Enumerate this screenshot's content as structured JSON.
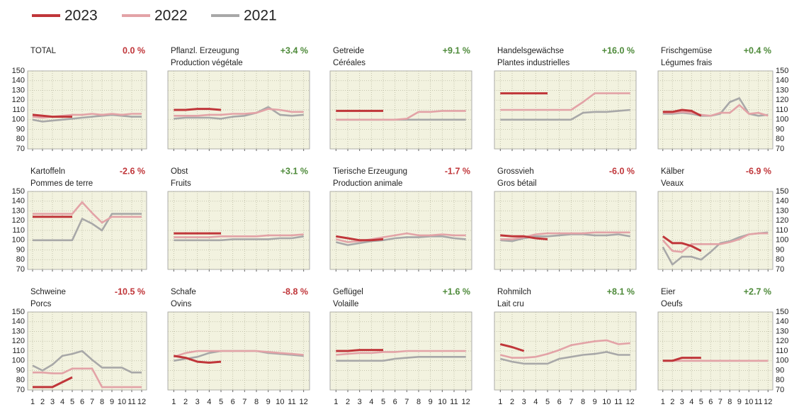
{
  "chart_data": {
    "type": "line",
    "legend": [
      {
        "name": "2023",
        "color": "#c0363a"
      },
      {
        "name": "2022",
        "color": "#e3a3a7"
      },
      {
        "name": "2021",
        "color": "#a8a8a8"
      }
    ],
    "categories": [
      1,
      2,
      3,
      4,
      5,
      6,
      7,
      8,
      9,
      10,
      11,
      12
    ],
    "ylim": [
      70,
      150
    ],
    "yticks": [
      70,
      80,
      90,
      100,
      110,
      120,
      130,
      140,
      150
    ],
    "grid": true,
    "panels": [
      {
        "title": "TOTAL",
        "change": "0.0 %",
        "change_color": "#c0363a",
        "series": [
          {
            "values": [
              105,
              104,
              103,
              103,
              103,
              null,
              null,
              null,
              null,
              null,
              null,
              null
            ]
          },
          {
            "values": [
              103,
              102,
              103,
              104,
              105,
              105,
              106,
              105,
              106,
              105,
              106,
              106
            ]
          },
          {
            "values": [
              100,
              98,
              99,
              100,
              101,
              102,
              103,
              104,
              105,
              104,
              103,
              103
            ]
          }
        ]
      },
      {
        "title": "Pflanzl. Erzeugung",
        "subtitle": "Production végétale",
        "change": "+3.4 %",
        "change_color": "#4e8a3a",
        "series": [
          {
            "values": [
              110,
              110,
              111,
              111,
              110,
              null,
              null,
              null,
              null,
              null,
              null,
              null
            ]
          },
          {
            "values": [
              104,
              104,
              104,
              105,
              105,
              106,
              106,
              107,
              111,
              110,
              108,
              108
            ]
          },
          {
            "values": [
              101,
              102,
              102,
              102,
              101,
              103,
              104,
              107,
              113,
              105,
              104,
              105
            ]
          }
        ]
      },
      {
        "title": "Getreide",
        "subtitle": "Céréales",
        "change": "+9.1 %",
        "change_color": "#4e8a3a",
        "series": [
          {
            "values": [
              109,
              109,
              109,
              109,
              109,
              null,
              null,
              null,
              null,
              null,
              null,
              null
            ]
          },
          {
            "values": [
              100,
              100,
              100,
              100,
              100,
              100,
              101,
              108,
              108,
              109,
              109,
              109
            ]
          },
          {
            "values": [
              100,
              100,
              100,
              100,
              100,
              100,
              100,
              100,
              100,
              100,
              100,
              100
            ]
          }
        ]
      },
      {
        "title": "Handelsgewächse",
        "subtitle": "Plantes industrielles",
        "change": "+16.0 %",
        "change_color": "#4e8a3a",
        "series": [
          {
            "values": [
              127,
              127,
              127,
              127,
              127,
              null,
              null,
              null,
              null,
              null,
              null,
              null
            ]
          },
          {
            "values": [
              110,
              110,
              110,
              110,
              110,
              110,
              110,
              118,
              127,
              127,
              127,
              127
            ]
          },
          {
            "values": [
              100,
              100,
              100,
              100,
              100,
              100,
              100,
              107,
              108,
              108,
              109,
              110
            ]
          }
        ]
      },
      {
        "title": "Frischgemüse",
        "subtitle": "Légumes frais",
        "change": "+0.4 %",
        "change_color": "#4e8a3a",
        "series": [
          {
            "values": [
              108,
              108,
              110,
              109,
              104,
              null,
              null,
              null,
              null,
              null,
              null,
              null
            ]
          },
          {
            "values": [
              107,
              107,
              108,
              107,
              105,
              104,
              107,
              107,
              115,
              106,
              107,
              104
            ]
          },
          {
            "values": [
              106,
              106,
              107,
              106,
              104,
              104,
              106,
              118,
              122,
              106,
              104,
              105
            ]
          }
        ]
      },
      {
        "title": "Kartoffeln",
        "subtitle": "Pommes de terre",
        "change": "-2.6 %",
        "change_color": "#c0363a",
        "series": [
          {
            "values": [
              124,
              124,
              124,
              124,
              124,
              null,
              null,
              null,
              null,
              null,
              null,
              null
            ]
          },
          {
            "values": [
              127,
              127,
              127,
              127,
              127,
              139,
              128,
              118,
              124,
              124,
              124,
              124
            ]
          },
          {
            "values": [
              100,
              100,
              100,
              100,
              100,
              122,
              117,
              110,
              127,
              127,
              127,
              127
            ]
          }
        ]
      },
      {
        "title": "Obst",
        "subtitle": "Fruits",
        "change": "+3.1 %",
        "change_color": "#4e8a3a",
        "series": [
          {
            "values": [
              107,
              107,
              107,
              107,
              107,
              null,
              null,
              null,
              null,
              null,
              null,
              null
            ]
          },
          {
            "values": [
              103,
              103,
              103,
              103,
              104,
              104,
              104,
              104,
              105,
              105,
              105,
              106
            ]
          },
          {
            "values": [
              100,
              100,
              100,
              100,
              100,
              101,
              101,
              101,
              101,
              102,
              102,
              104
            ]
          }
        ]
      },
      {
        "title": "Tierische Erzeugung",
        "subtitle": "Production animale",
        "change": "-1.7 %",
        "change_color": "#c0363a",
        "series": [
          {
            "values": [
              104,
              102,
              100,
              100,
              101,
              null,
              null,
              null,
              null,
              null,
              null,
              null
            ]
          },
          {
            "values": [
              101,
              98,
              99,
              101,
              103,
              105,
              107,
              105,
              105,
              106,
              105,
              105
            ]
          },
          {
            "values": [
              98,
              95,
              97,
              99,
              100,
              102,
              103,
              103,
              104,
              104,
              102,
              101
            ]
          }
        ]
      },
      {
        "title": "Grossvieh",
        "subtitle": "Gros bétail",
        "change": "-6.0 %",
        "change_color": "#c0363a",
        "series": [
          {
            "values": [
              105,
              104,
              104,
              102,
              101,
              null,
              null,
              null,
              null,
              null,
              null,
              null
            ]
          },
          {
            "values": [
              101,
              101,
              103,
              106,
              107,
              107,
              107,
              107,
              108,
              108,
              108,
              108
            ]
          },
          {
            "values": [
              100,
              99,
              102,
              104,
              104,
              105,
              106,
              106,
              105,
              105,
              106,
              104
            ]
          }
        ]
      },
      {
        "title": "Kälber",
        "subtitle": "Veaux",
        "change": "-6.9 %",
        "change_color": "#c0363a",
        "series": [
          {
            "values": [
              104,
              97,
              97,
              94,
              89,
              null,
              null,
              null,
              null,
              null,
              null,
              null
            ]
          },
          {
            "values": [
              100,
              89,
              88,
              96,
              96,
              96,
              96,
              98,
              101,
              106,
              107,
              107
            ]
          },
          {
            "values": [
              93,
              75,
              83,
              83,
              80,
              88,
              97,
              99,
              103,
              106,
              107,
              108
            ]
          }
        ]
      },
      {
        "title": "Schweine",
        "subtitle": "Porcs",
        "change": "-10.5 %",
        "change_color": "#c0363a",
        "series": [
          {
            "values": [
              73,
              73,
              73,
              78,
              83,
              null,
              null,
              null,
              null,
              null,
              null,
              null
            ]
          },
          {
            "values": [
              88,
              88,
              87,
              87,
              92,
              92,
              92,
              73,
              73,
              73,
              73,
              73
            ]
          },
          {
            "values": [
              95,
              90,
              96,
              105,
              107,
              110,
              101,
              93,
              93,
              93,
              88,
              88
            ]
          }
        ]
      },
      {
        "title": "Schafe",
        "subtitle": "Ovins",
        "change": "-8.8 %",
        "change_color": "#c0363a",
        "series": [
          {
            "values": [
              105,
              103,
              99,
              98,
              99,
              null,
              null,
              null,
              null,
              null,
              null,
              null
            ]
          },
          {
            "values": [
              104,
              108,
              110,
              110,
              110,
              110,
              110,
              110,
              109,
              108,
              107,
              106
            ]
          },
          {
            "values": [
              100,
              102,
              104,
              108,
              110,
              110,
              110,
              110,
              108,
              107,
              106,
              105
            ]
          }
        ]
      },
      {
        "title": "Geflügel",
        "subtitle": "Volaille",
        "change": "+1.6 %",
        "change_color": "#4e8a3a",
        "series": [
          {
            "values": [
              110,
              110,
              111,
              111,
              111,
              null,
              null,
              null,
              null,
              null,
              null,
              null
            ]
          },
          {
            "values": [
              106,
              107,
              108,
              108,
              109,
              109,
              110,
              110,
              110,
              110,
              110,
              110
            ]
          },
          {
            "values": [
              100,
              100,
              100,
              100,
              100,
              102,
              103,
              104,
              104,
              104,
              104,
              104
            ]
          }
        ]
      },
      {
        "title": "Rohmilch",
        "subtitle": "Lait cru",
        "change": "+8.1 %",
        "change_color": "#4e8a3a",
        "series": [
          {
            "values": [
              117,
              114,
              110,
              null,
              null,
              null,
              null,
              null,
              null,
              null,
              null,
              null
            ]
          },
          {
            "values": [
              106,
              103,
              103,
              104,
              107,
              111,
              116,
              118,
              120,
              121,
              117,
              118
            ]
          },
          {
            "values": [
              102,
              99,
              97,
              97,
              97,
              102,
              104,
              106,
              107,
              109,
              106,
              106
            ]
          }
        ]
      },
      {
        "title": "Eier",
        "subtitle": "Oeufs",
        "change": "+2.7 %",
        "change_color": "#4e8a3a",
        "series": [
          {
            "values": [
              100,
              100,
              103,
              103,
              103,
              null,
              null,
              null,
              null,
              null,
              null,
              null
            ]
          },
          {
            "values": [
              100,
              100,
              100,
              100,
              100,
              100,
              100,
              100,
              100,
              100,
              100,
              100
            ]
          },
          {
            "values": [
              100,
              100,
              100,
              100,
              100,
              100,
              100,
              100,
              100,
              100,
              100,
              100
            ]
          }
        ]
      }
    ]
  }
}
